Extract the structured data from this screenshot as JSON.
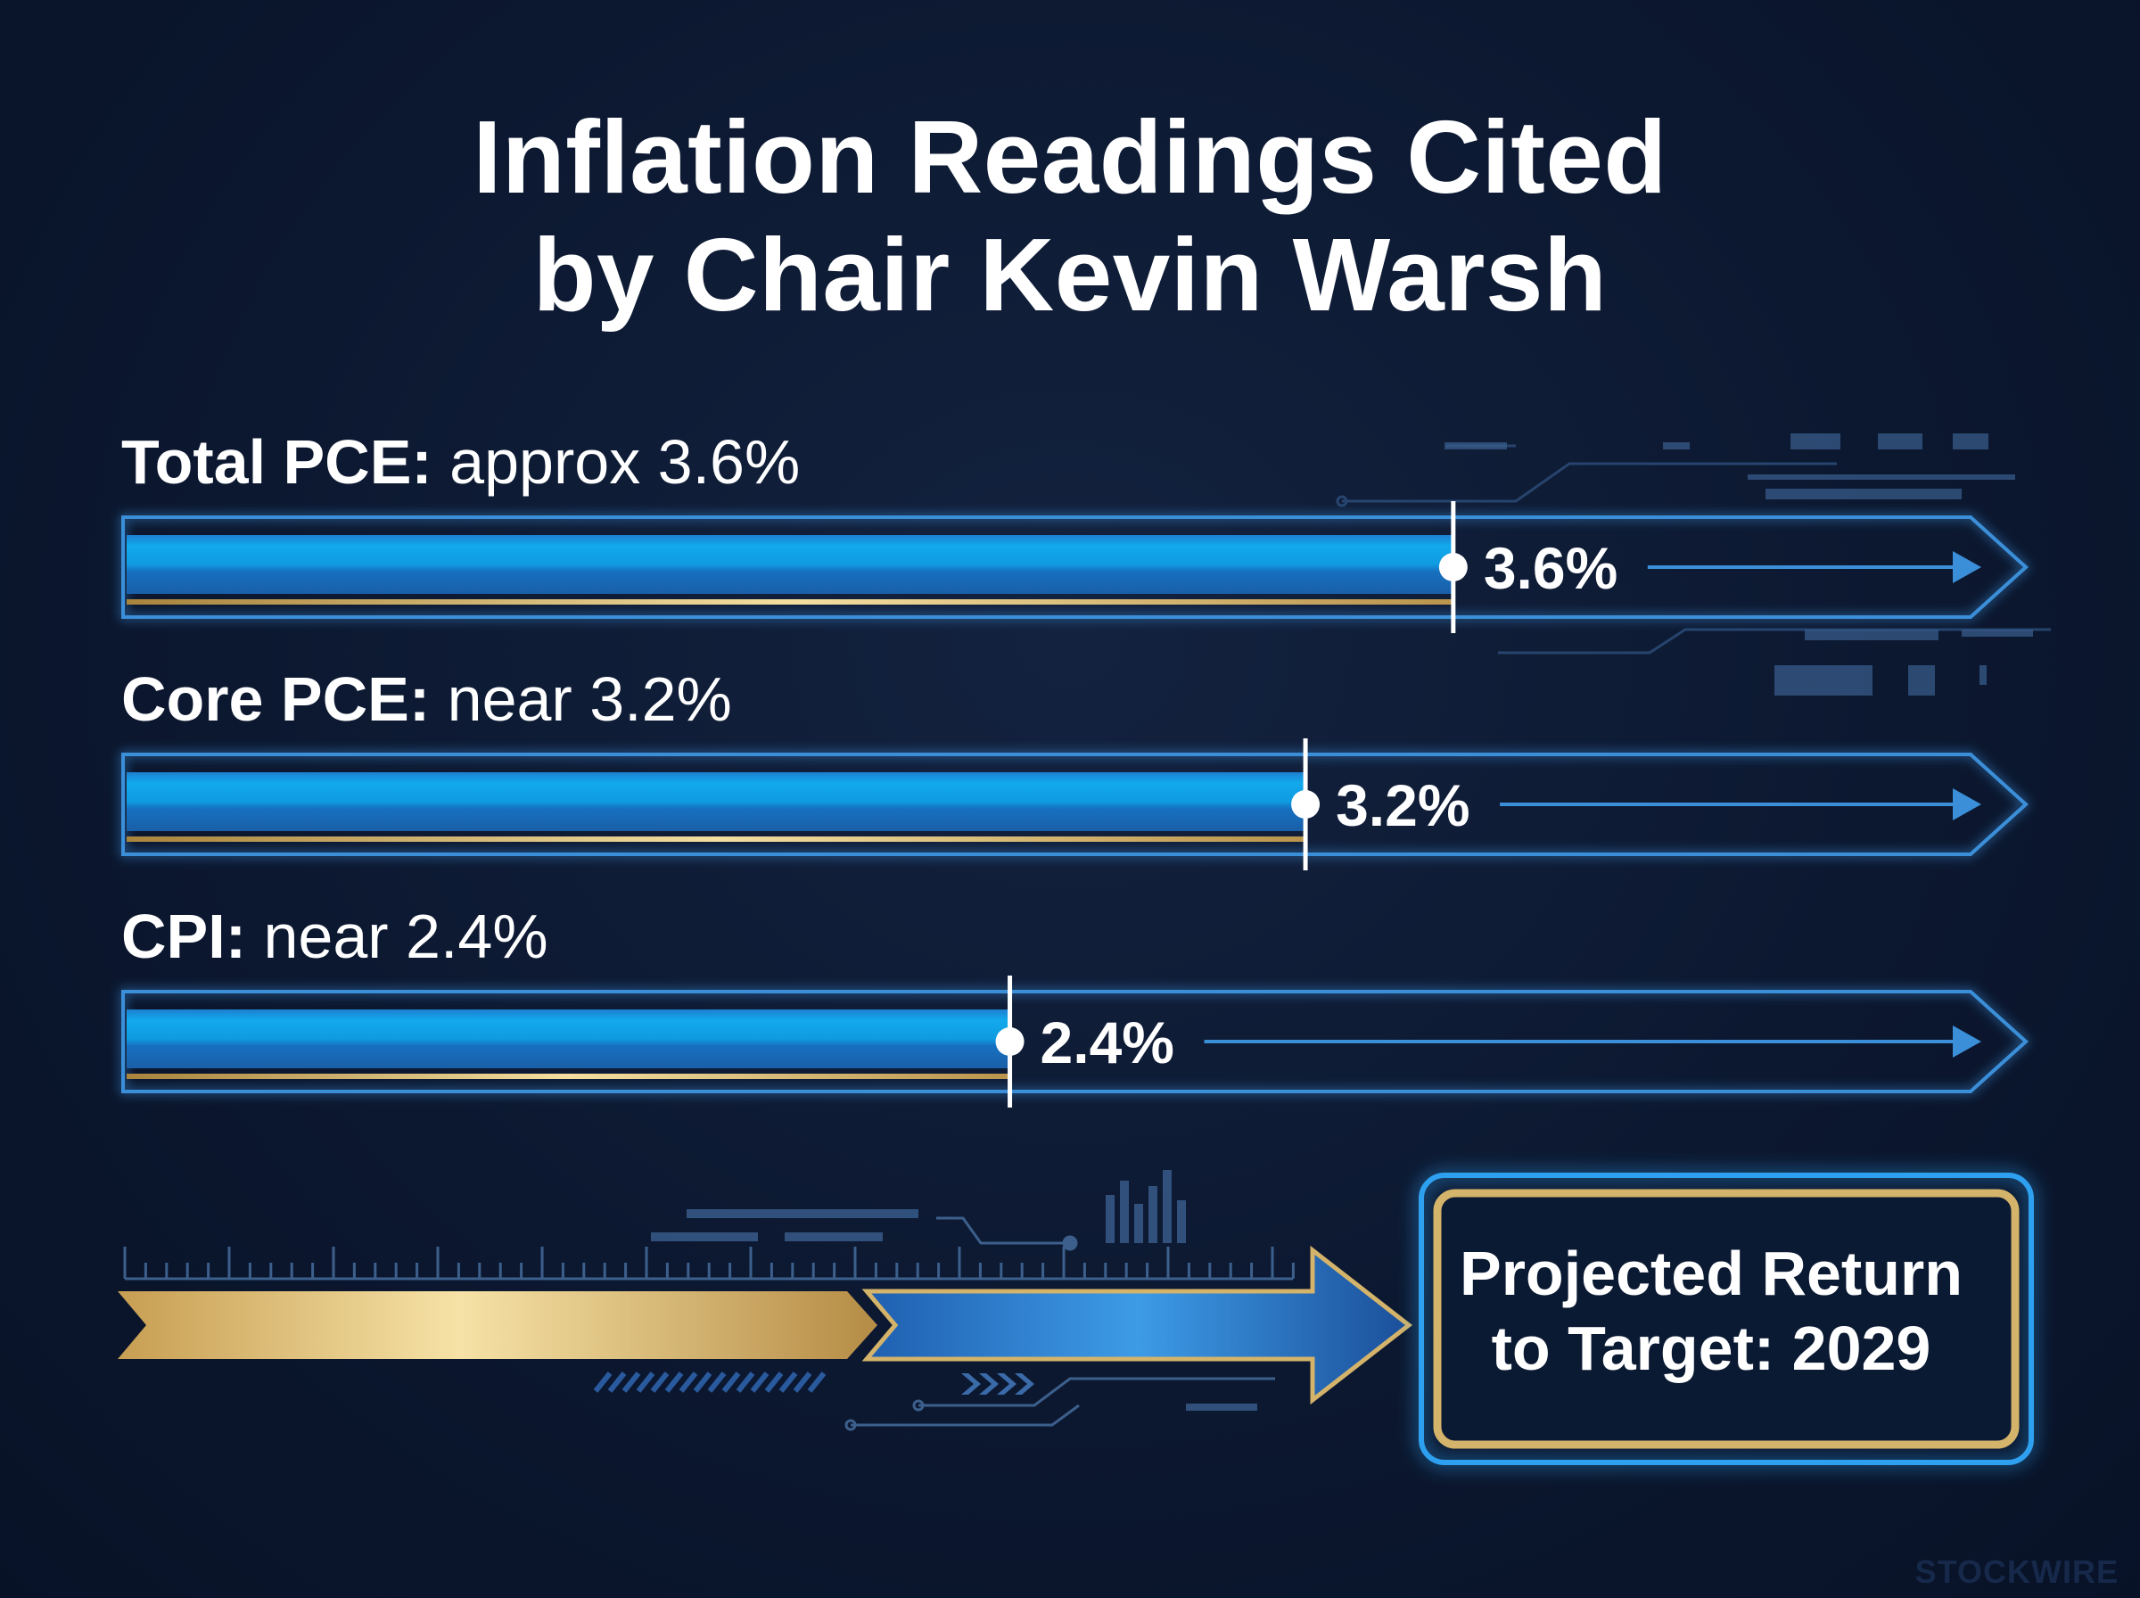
{
  "title_line1": "Inflation Readings Cited",
  "title_line2": "by Chair Kevin Warsh",
  "chart_data": {
    "type": "bar",
    "orientation": "horizontal",
    "title": "Inflation Readings Cited by Chair Kevin Warsh",
    "categories": [
      "Total PCE",
      "Core PCE",
      "CPI"
    ],
    "values": [
      3.6,
      3.2,
      2.4
    ],
    "unit": "%",
    "bars": [
      {
        "name": "Total PCE",
        "qualifier": "approx 3.6%",
        "value": 3.6,
        "value_label": "3.6%"
      },
      {
        "name": "Core PCE",
        "qualifier": "near 3.2%",
        "value": 3.2,
        "value_label": "3.2%"
      },
      {
        "name": "CPI",
        "qualifier": "near 2.4%",
        "value": 2.4,
        "value_label": "2.4%"
      }
    ],
    "xlim": [
      0,
      5
    ],
    "grid": false,
    "legend": "none"
  },
  "projection": {
    "line1": "Projected Return",
    "line2": "to Target: 2029"
  },
  "watermark": "STOCKWIRE",
  "colors": {
    "background": "#0c1830",
    "bar_blue": "#1a8fe0",
    "bar_light_blue": "#12a9ec",
    "outline_blue": "#3b8fd9",
    "gold": "#d4b36a",
    "text": "#ffffff"
  }
}
